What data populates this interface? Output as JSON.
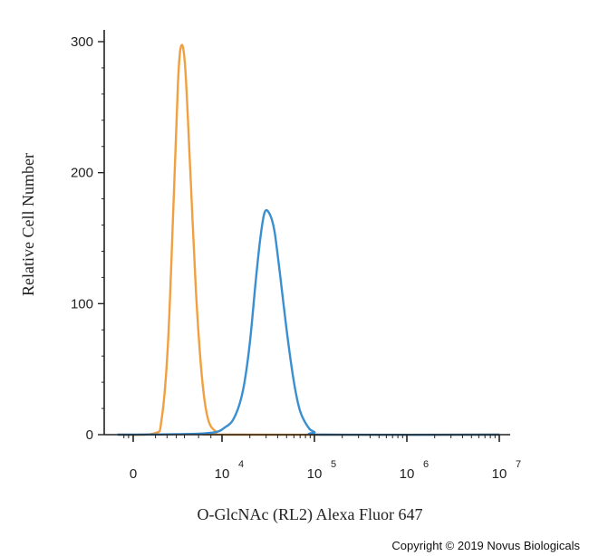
{
  "chart_data": {
    "type": "line",
    "xlabel": "O-GlcNAc (RL2) Alexa Fluor 647",
    "ylabel": "Relative Cell Number",
    "x_scale": "biexponential",
    "ylim": [
      0,
      300
    ],
    "y_ticks": [
      {
        "value": 0,
        "label": "0"
      },
      {
        "value": 100,
        "label": "100"
      },
      {
        "value": 200,
        "label": "200"
      },
      {
        "value": 300,
        "label": "300"
      }
    ],
    "x_ticks": [
      {
        "value": 0,
        "base": "0",
        "exp": ""
      },
      {
        "value": 10000,
        "base": "10",
        "exp": "4"
      },
      {
        "value": 100000,
        "base": "10",
        "exp": "5"
      },
      {
        "value": 1000000,
        "base": "10",
        "exp": "6"
      },
      {
        "value": 10000000,
        "base": "10",
        "exp": "7"
      }
    ],
    "grid": false,
    "legend": "none",
    "series": [
      {
        "color": "#f0a040",
        "points": [
          [
            -5000,
            0
          ],
          [
            900,
            1
          ],
          [
            1500,
            12
          ],
          [
            2100,
            70
          ],
          [
            2700,
            180
          ],
          [
            3200,
            270
          ],
          [
            3600,
            297
          ],
          [
            4100,
            280
          ],
          [
            4800,
            200
          ],
          [
            5600,
            110
          ],
          [
            6500,
            45
          ],
          [
            7500,
            12
          ],
          [
            9000,
            2
          ],
          [
            11000,
            0
          ],
          [
            10000000,
            0
          ]
        ]
      },
      {
        "color": "#3a8fd0",
        "points": [
          [
            -5000,
            0
          ],
          [
            7000,
            1
          ],
          [
            11000,
            6
          ],
          [
            14000,
            15
          ],
          [
            17000,
            35
          ],
          [
            20000,
            70
          ],
          [
            23000,
            115
          ],
          [
            26000,
            150
          ],
          [
            29000,
            170
          ],
          [
            33000,
            168
          ],
          [
            37000,
            155
          ],
          [
            42000,
            125
          ],
          [
            50000,
            80
          ],
          [
            60000,
            40
          ],
          [
            70000,
            18
          ],
          [
            85000,
            6
          ],
          [
            100000,
            2
          ],
          [
            130000,
            0
          ],
          [
            10000000,
            0
          ]
        ]
      }
    ]
  },
  "copyright": "Copyright © 2019 Novus Biologicals"
}
